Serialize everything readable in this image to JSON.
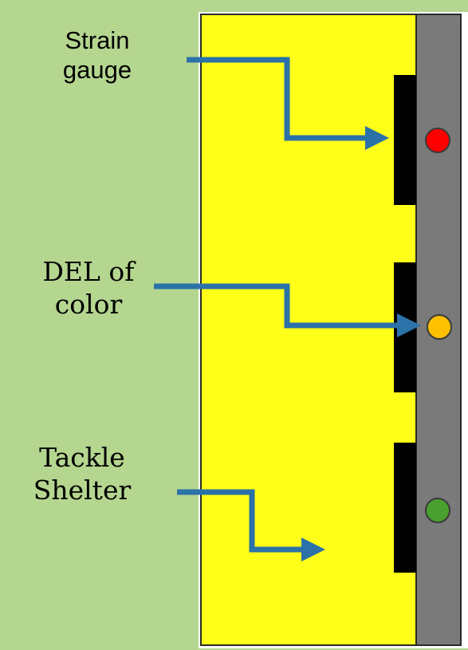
{
  "labels": {
    "strain_gauge": {
      "line1": "Strain",
      "line2": "gauge"
    },
    "del_of_color": {
      "line1": "DEL of",
      "line2": "color"
    },
    "tackle_shelter": {
      "line1": "Tackle",
      "line2": "Shelter"
    }
  },
  "colors": {
    "background": "#b5d68f",
    "panel": "#ffff19",
    "panel_border": "#2a2a2a",
    "rail": "#7a7a7a",
    "strip": "#000000",
    "arrow": "#2b72a8",
    "led_red": "#ff0000",
    "led_amber": "#ffc000",
    "led_green": "#4aa02e"
  },
  "indicators": [
    {
      "name": "red-led",
      "color": "#ff0000"
    },
    {
      "name": "amber-led",
      "color": "#ffc000"
    },
    {
      "name": "green-led",
      "color": "#4aa02e"
    }
  ]
}
